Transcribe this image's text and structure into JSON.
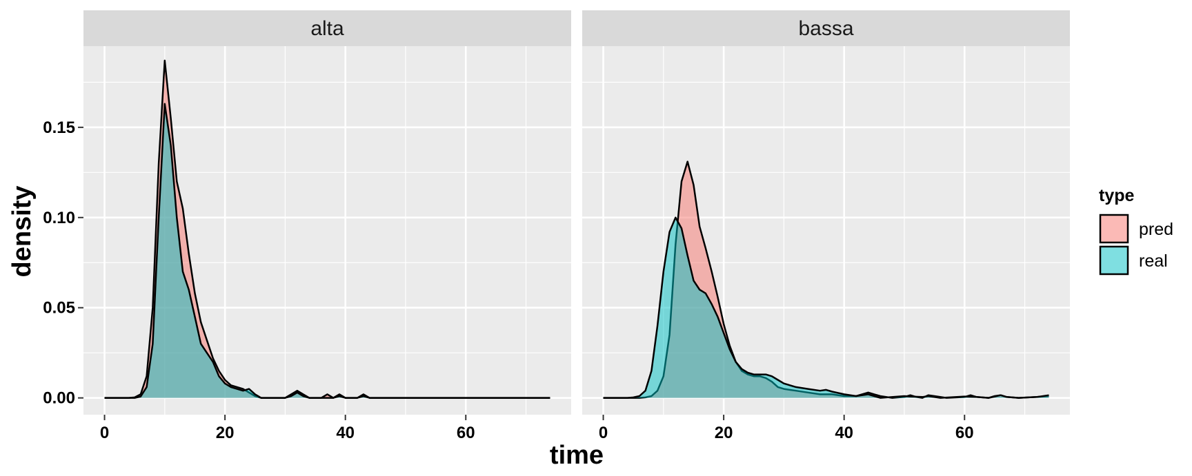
{
  "chart_data": {
    "type": "area",
    "subtype": "density",
    "xlabel": "time",
    "ylabel": "density",
    "xlim": [
      -3.5,
      77.5
    ],
    "ylim": [
      -0.0093,
      0.195
    ],
    "x_ticks": [
      0,
      20,
      40,
      60
    ],
    "x_tick_labels": [
      "0",
      "20",
      "40",
      "60"
    ],
    "y_ticks": [
      0.0,
      0.05,
      0.1,
      0.15
    ],
    "y_tick_labels": [
      "0.00",
      "0.05",
      "0.10",
      "0.15"
    ],
    "grid": true,
    "legend": {
      "title": "type",
      "position": "right",
      "entries": [
        {
          "label": "pred",
          "color": "#F8766D"
        },
        {
          "label": "real",
          "color": "#00BFC4"
        }
      ]
    },
    "panels": [
      {
        "strip": "alta",
        "series": [
          {
            "name": "pred",
            "points": [
              [
                0,
                0
              ],
              [
                4,
                0
              ],
              [
                5,
                0.0003
              ],
              [
                6,
                0.002
              ],
              [
                7,
                0.012
              ],
              [
                8,
                0.05
              ],
              [
                9,
                0.13
              ],
              [
                10,
                0.187
              ],
              [
                11,
                0.155
              ],
              [
                12,
                0.12
              ],
              [
                13,
                0.105
              ],
              [
                14,
                0.08
              ],
              [
                15,
                0.058
              ],
              [
                16,
                0.042
              ],
              [
                17,
                0.032
              ],
              [
                18,
                0.022
              ],
              [
                19,
                0.015
              ],
              [
                20,
                0.01
              ],
              [
                21,
                0.007
              ],
              [
                22,
                0.006
              ],
              [
                23,
                0.005
              ],
              [
                24,
                0.003
              ],
              [
                25,
                0.001
              ],
              [
                26,
                0
              ],
              [
                30,
                0
              ],
              [
                31,
                0.002
              ],
              [
                32,
                0.004
              ],
              [
                33,
                0.002
              ],
              [
                34,
                0
              ],
              [
                36,
                0
              ],
              [
                37,
                0.002
              ],
              [
                38,
                0
              ],
              [
                39,
                0.002
              ],
              [
                40,
                0
              ],
              [
                42,
                0
              ],
              [
                43,
                0.002
              ],
              [
                44,
                0
              ],
              [
                74,
                0
              ]
            ]
          },
          {
            "name": "real",
            "points": [
              [
                0,
                0
              ],
              [
                5,
                0
              ],
              [
                6,
                0.0008
              ],
              [
                7,
                0.006
              ],
              [
                8,
                0.03
              ],
              [
                9,
                0.1
              ],
              [
                10,
                0.163
              ],
              [
                11,
                0.14
              ],
              [
                12,
                0.1
              ],
              [
                13,
                0.07
              ],
              [
                14,
                0.06
              ],
              [
                15,
                0.045
              ],
              [
                16,
                0.03
              ],
              [
                17,
                0.025
              ],
              [
                18,
                0.02
              ],
              [
                19,
                0.012
              ],
              [
                20,
                0.008
              ],
              [
                21,
                0.006
              ],
              [
                22,
                0.005
              ],
              [
                23,
                0.004
              ],
              [
                24,
                0.005
              ],
              [
                25,
                0.002
              ],
              [
                26,
                0
              ],
              [
                30,
                0
              ],
              [
                31,
                0.001
              ],
              [
                32,
                0.003
              ],
              [
                33,
                0.001
              ],
              [
                34,
                0
              ],
              [
                38,
                0
              ],
              [
                39,
                0.001
              ],
              [
                40,
                0
              ],
              [
                42,
                0
              ],
              [
                43,
                0.001
              ],
              [
                44,
                0
              ],
              [
                74,
                0
              ]
            ]
          }
        ]
      },
      {
        "strip": "bassa",
        "series": [
          {
            "name": "pred",
            "points": [
              [
                0,
                0
              ],
              [
                6,
                0
              ],
              [
                7,
                0.0003
              ],
              [
                8,
                0.001
              ],
              [
                9,
                0.004
              ],
              [
                10,
                0.012
              ],
              [
                11,
                0.035
              ],
              [
                12,
                0.085
              ],
              [
                13,
                0.12
              ],
              [
                14,
                0.131
              ],
              [
                15,
                0.118
              ],
              [
                16,
                0.095
              ],
              [
                17,
                0.083
              ],
              [
                18,
                0.07
              ],
              [
                19,
                0.056
              ],
              [
                20,
                0.041
              ],
              [
                21,
                0.029
              ],
              [
                22,
                0.02
              ],
              [
                23,
                0.015
              ],
              [
                24,
                0.013
              ],
              [
                25,
                0.012
              ],
              [
                26,
                0.012
              ],
              [
                27,
                0.011
              ],
              [
                28,
                0.009
              ],
              [
                29,
                0.006
              ],
              [
                30,
                0.005
              ],
              [
                32,
                0.004
              ],
              [
                34,
                0.003
              ],
              [
                36,
                0.002
              ],
              [
                38,
                0.002
              ],
              [
                40,
                0.001
              ],
              [
                42,
                0.001
              ],
              [
                44,
                0.003
              ],
              [
                45,
                0.002
              ],
              [
                46,
                0.001
              ],
              [
                48,
                0
              ],
              [
                50,
                0.0005
              ],
              [
                51,
                0.0015
              ],
              [
                52,
                0.0005
              ],
              [
                53,
                0
              ],
              [
                54,
                0.0015
              ],
              [
                55,
                0.001
              ],
              [
                57,
                0
              ],
              [
                60,
                0.0005
              ],
              [
                61,
                0.0015
              ],
              [
                62,
                0.0005
              ],
              [
                64,
                0
              ],
              [
                65,
                0.001
              ],
              [
                66,
                0.0015
              ],
              [
                67,
                0.0005
              ],
              [
                69,
                0
              ],
              [
                72,
                0.0005
              ],
              [
                74,
                0.001
              ]
            ]
          },
          {
            "name": "real",
            "points": [
              [
                0,
                0
              ],
              [
                4,
                0
              ],
              [
                5,
                0.0003
              ],
              [
                6,
                0.001
              ],
              [
                7,
                0.004
              ],
              [
                8,
                0.015
              ],
              [
                9,
                0.04
              ],
              [
                10,
                0.07
              ],
              [
                11,
                0.092
              ],
              [
                12,
                0.1
              ],
              [
                13,
                0.094
              ],
              [
                14,
                0.079
              ],
              [
                15,
                0.065
              ],
              [
                16,
                0.06
              ],
              [
                17,
                0.058
              ],
              [
                18,
                0.052
              ],
              [
                19,
                0.045
              ],
              [
                20,
                0.036
              ],
              [
                21,
                0.027
              ],
              [
                22,
                0.02
              ],
              [
                23,
                0.016
              ],
              [
                24,
                0.014
              ],
              [
                25,
                0.013
              ],
              [
                26,
                0.013
              ],
              [
                27,
                0.013
              ],
              [
                28,
                0.012
              ],
              [
                29,
                0.01
              ],
              [
                30,
                0.008
              ],
              [
                32,
                0.006
              ],
              [
                34,
                0.005
              ],
              [
                36,
                0.004
              ],
              [
                37,
                0.0045
              ],
              [
                38,
                0.0035
              ],
              [
                40,
                0.002
              ],
              [
                42,
                0.001
              ],
              [
                44,
                0.002
              ],
              [
                45,
                0.001
              ],
              [
                46,
                0
              ],
              [
                50,
                0.001
              ],
              [
                51,
                0.0008
              ],
              [
                53,
                0.0005
              ],
              [
                54,
                0.001
              ],
              [
                56,
                0
              ],
              [
                60,
                0.0008
              ],
              [
                62,
                0.0005
              ],
              [
                64,
                0
              ],
              [
                66,
                0.0015
              ],
              [
                67,
                0.0005
              ],
              [
                69,
                0
              ],
              [
                72,
                0.0005
              ],
              [
                74,
                0.0015
              ]
            ]
          }
        ]
      }
    ]
  }
}
